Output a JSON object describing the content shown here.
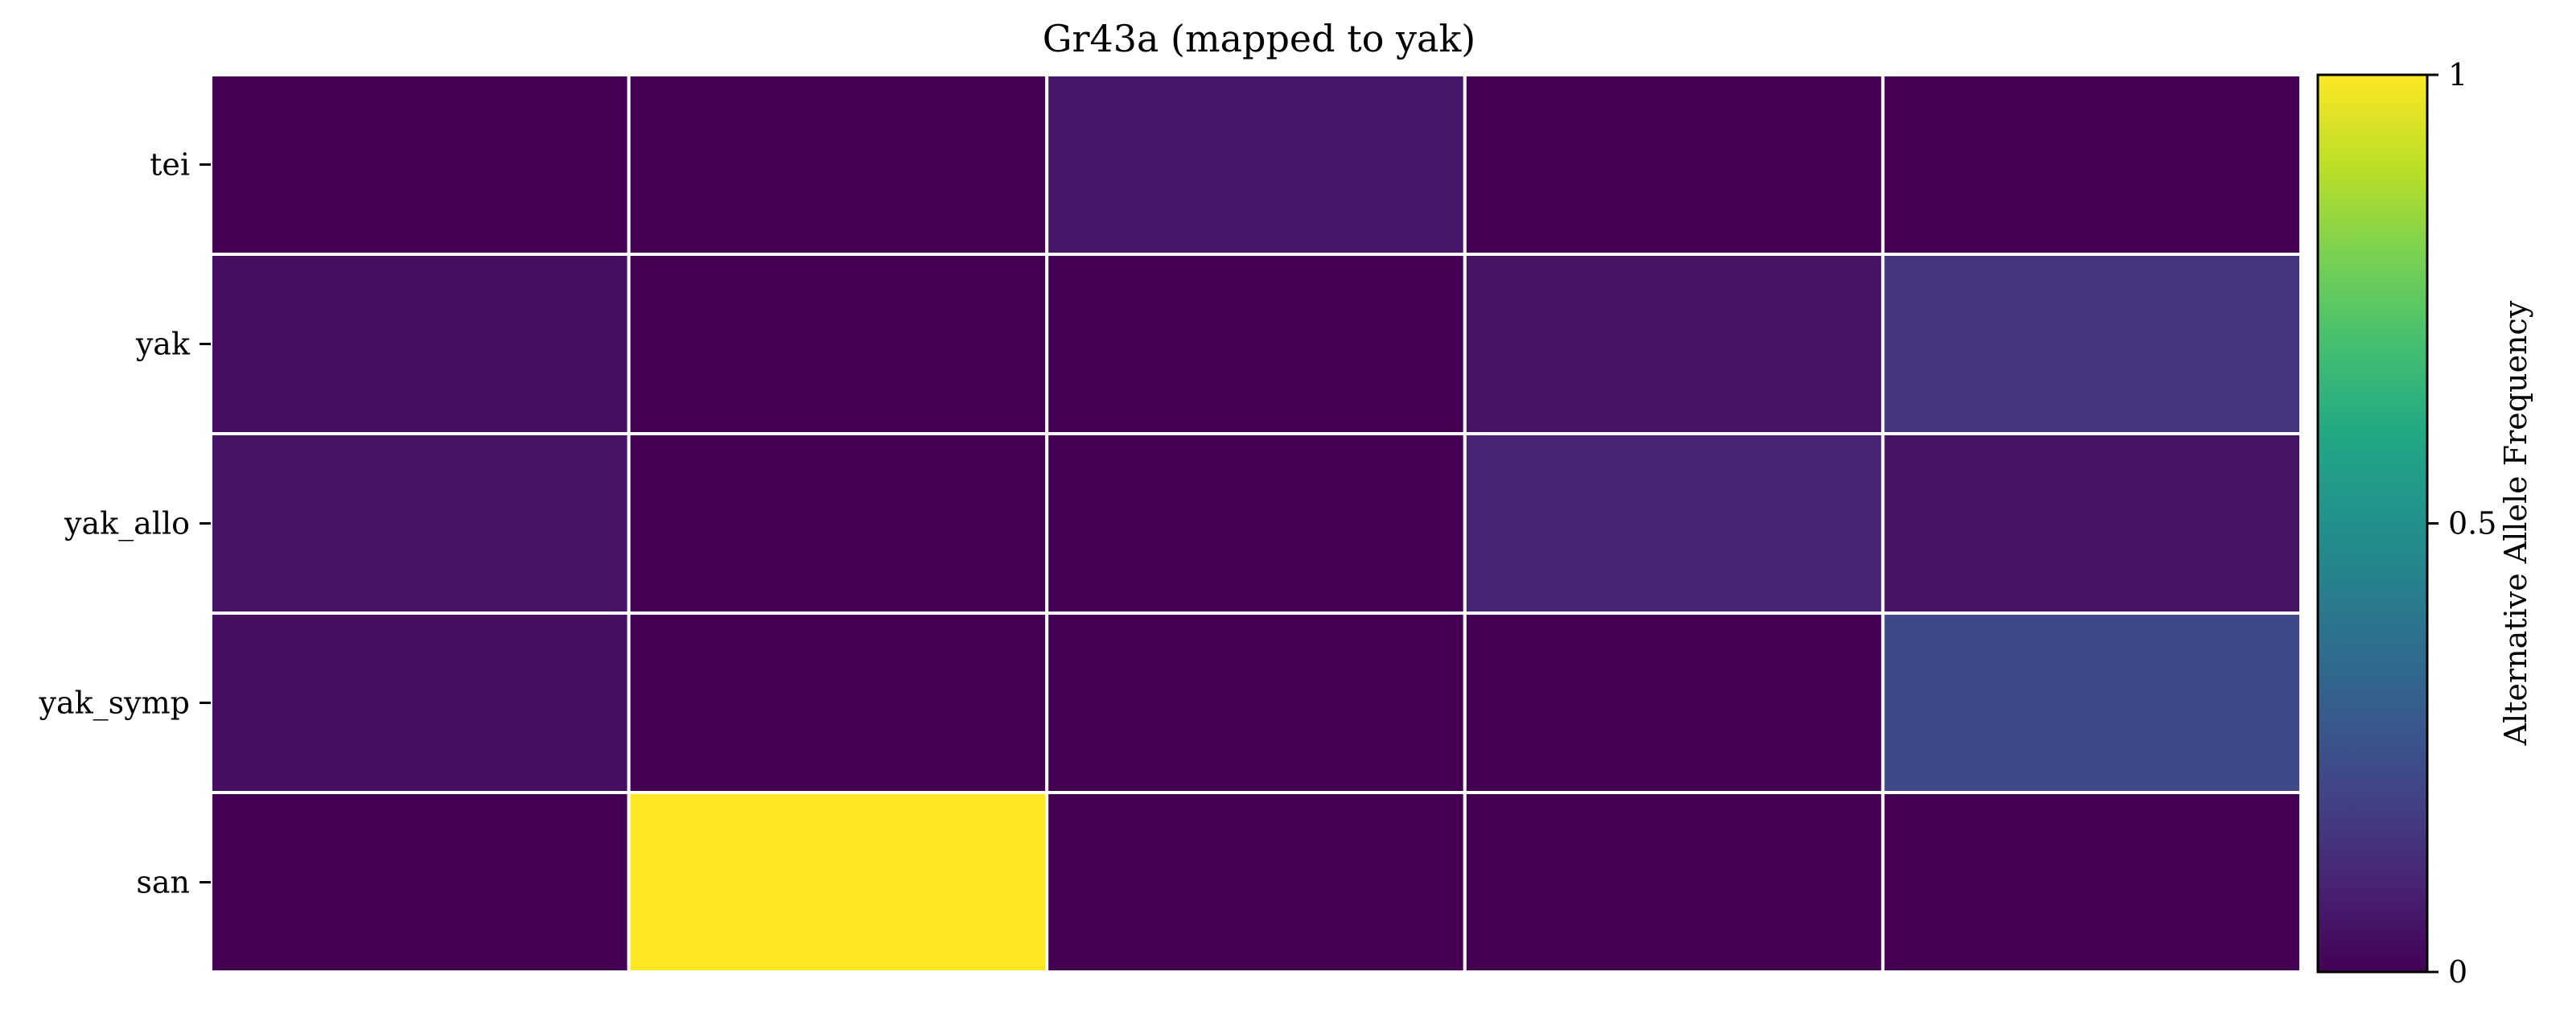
{
  "chart_data": {
    "type": "heatmap",
    "title": "Gr43a (mapped to yak)",
    "xlabel": "",
    "ylabel": "",
    "rows": [
      "tei",
      "yak",
      "yak_allo",
      "yak_symp",
      "san"
    ],
    "n_columns": 5,
    "values": [
      [
        0.0,
        0.0,
        0.06,
        0.0,
        0.0
      ],
      [
        0.04,
        0.0,
        0.0,
        0.05,
        0.15
      ],
      [
        0.05,
        0.0,
        0.0,
        0.1,
        0.05
      ],
      [
        0.04,
        0.0,
        0.0,
        0.0,
        0.22
      ],
      [
        0.0,
        1.0,
        0.0,
        0.0,
        0.0
      ]
    ],
    "colormap": "viridis",
    "vmin": 0,
    "vmax": 1,
    "grid": true,
    "grid_color": "#ffffff",
    "colorbar": {
      "label": "Alternative Allele Frequency",
      "ticks": [
        {
          "value": 0,
          "label": "0"
        },
        {
          "value": 0.5,
          "label": "0.5"
        },
        {
          "value": 1,
          "label": "1"
        }
      ],
      "placement": "right"
    }
  }
}
